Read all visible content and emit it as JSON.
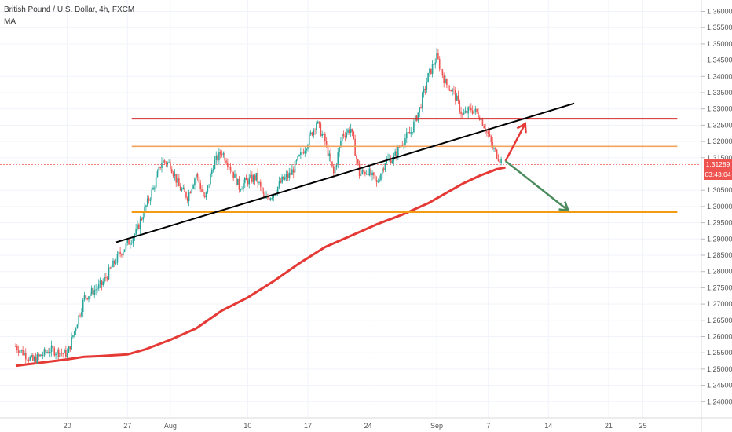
{
  "header": {
    "symbol": "British Pound / U.S. Dollar, 4h, FXCM",
    "indicator": "MA"
  },
  "price_tags": {
    "last": "1.31289",
    "countdown": "03:43:04"
  },
  "colors": {
    "up": "#26a69a",
    "down": "#ef5350",
    "ma": "#e53935",
    "resistance": "#d32f2f",
    "mid_level": "#f5a25d",
    "support": "#f39c12",
    "trendline": "#000000",
    "arrow_up": "#e53935",
    "arrow_down": "#4a8a5c",
    "last_tag": "#ef5350",
    "countdown_tag": "#ef5350"
  },
  "chart_data": {
    "type": "candlestick",
    "title": "British Pound / U.S. Dollar, 4h, FXCM",
    "ylim": [
      1.235,
      1.3635
    ],
    "y_ticks": [
      1.24,
      1.245,
      1.25,
      1.255,
      1.26,
      1.265,
      1.27,
      1.275,
      1.28,
      1.285,
      1.29,
      1.295,
      1.3,
      1.305,
      1.31,
      1.315,
      1.32,
      1.325,
      1.33,
      1.335,
      1.34,
      1.345,
      1.35,
      1.355,
      1.36
    ],
    "y_tick_labels": [
      "1.24000",
      "1.24500",
      "1.25000",
      "1.25500",
      "1.26000",
      "1.26500",
      "1.27000",
      "1.27500",
      "1.28000",
      "1.28500",
      "1.29000",
      "1.29500",
      "1.30000",
      "1.30500",
      "1.31000",
      "1.31500",
      "1.32000",
      "1.32500",
      "1.33000",
      "1.33500",
      "1.34000",
      "1.34500",
      "1.35000",
      "1.35500",
      "1.36000"
    ],
    "x_ticks": [
      {
        "label": "20",
        "day": 6
      },
      {
        "label": "27",
        "day": 13
      },
      {
        "label": "Aug",
        "day": 18
      },
      {
        "label": "10",
        "day": 27
      },
      {
        "label": "17",
        "day": 34
      },
      {
        "label": "24",
        "day": 41
      },
      {
        "label": "Sep",
        "day": 49
      },
      {
        "label": "7",
        "day": 55
      },
      {
        "label": "14",
        "day": 62
      },
      {
        "label": "21",
        "day": 69
      },
      {
        "label": "25",
        "day": 73
      }
    ],
    "key_points": [
      {
        "day": 0,
        "price": 1.257
      },
      {
        "day": 2,
        "price": 1.2525
      },
      {
        "day": 4,
        "price": 1.256
      },
      {
        "day": 6,
        "price": 1.2545
      },
      {
        "day": 8,
        "price": 1.272
      },
      {
        "day": 10,
        "price": 1.276
      },
      {
        "day": 12,
        "price": 1.285
      },
      {
        "day": 14,
        "price": 1.292
      },
      {
        "day": 15,
        "price": 1.299
      },
      {
        "day": 16,
        "price": 1.3055
      },
      {
        "day": 17,
        "price": 1.314
      },
      {
        "day": 18,
        "price": 1.313
      },
      {
        "day": 19,
        "price": 1.306
      },
      {
        "day": 20,
        "price": 1.303
      },
      {
        "day": 21,
        "price": 1.31
      },
      {
        "day": 22,
        "price": 1.302
      },
      {
        "day": 23,
        "price": 1.313
      },
      {
        "day": 24,
        "price": 1.317
      },
      {
        "day": 25,
        "price": 1.312
      },
      {
        "day": 26,
        "price": 1.306
      },
      {
        "day": 27,
        "price": 1.308
      },
      {
        "day": 28,
        "price": 1.309
      },
      {
        "day": 29,
        "price": 1.302
      },
      {
        "day": 30,
        "price": 1.304
      },
      {
        "day": 31,
        "price": 1.308
      },
      {
        "day": 32,
        "price": 1.31
      },
      {
        "day": 33,
        "price": 1.315
      },
      {
        "day": 34,
        "price": 1.32
      },
      {
        "day": 35,
        "price": 1.326
      },
      {
        "day": 36,
        "price": 1.32
      },
      {
        "day": 37,
        "price": 1.31
      },
      {
        "day": 38,
        "price": 1.322
      },
      {
        "day": 39,
        "price": 1.324
      },
      {
        "day": 40,
        "price": 1.31
      },
      {
        "day": 41,
        "price": 1.311
      },
      {
        "day": 42,
        "price": 1.307
      },
      {
        "day": 43,
        "price": 1.314
      },
      {
        "day": 44,
        "price": 1.315
      },
      {
        "day": 45,
        "price": 1.32
      },
      {
        "day": 46,
        "price": 1.323
      },
      {
        "day": 47,
        "price": 1.33
      },
      {
        "day": 48,
        "price": 1.34
      },
      {
        "day": 49,
        "price": 1.346
      },
      {
        "day": 49.5,
        "price": 1.342
      },
      {
        "day": 50,
        "price": 1.338
      },
      {
        "day": 51,
        "price": 1.335
      },
      {
        "day": 52,
        "price": 1.328
      },
      {
        "day": 53,
        "price": 1.33
      },
      {
        "day": 54,
        "price": 1.328
      },
      {
        "day": 55,
        "price": 1.322
      },
      {
        "day": 55.5,
        "price": 1.318
      },
      {
        "day": 56,
        "price": 1.316
      },
      {
        "day": 56.5,
        "price": 1.314
      }
    ],
    "moving_average": [
      {
        "day": 0,
        "price": 1.251
      },
      {
        "day": 3,
        "price": 1.252
      },
      {
        "day": 6,
        "price": 1.253
      },
      {
        "day": 8,
        "price": 1.2538
      },
      {
        "day": 10,
        "price": 1.254
      },
      {
        "day": 13,
        "price": 1.2545
      },
      {
        "day": 15,
        "price": 1.256
      },
      {
        "day": 18,
        "price": 1.259
      },
      {
        "day": 21,
        "price": 1.2625
      },
      {
        "day": 24,
        "price": 1.268
      },
      {
        "day": 27,
        "price": 1.272
      },
      {
        "day": 30,
        "price": 1.277
      },
      {
        "day": 33,
        "price": 1.2825
      },
      {
        "day": 36,
        "price": 1.2875
      },
      {
        "day": 39,
        "price": 1.291
      },
      {
        "day": 42,
        "price": 1.2945
      },
      {
        "day": 45,
        "price": 1.2975
      },
      {
        "day": 48,
        "price": 1.301
      },
      {
        "day": 50,
        "price": 1.304
      },
      {
        "day": 52,
        "price": 1.307
      },
      {
        "day": 54,
        "price": 1.3095
      },
      {
        "day": 56,
        "price": 1.3115
      },
      {
        "day": 57,
        "price": 1.312
      }
    ],
    "horizontal_levels": [
      {
        "name": "resistance",
        "price": 1.327,
        "from_day": 13.5,
        "to_day": 77
      },
      {
        "name": "mid_level",
        "price": 1.3185,
        "from_day": 13.5,
        "to_day": 77
      },
      {
        "name": "support",
        "price": 1.2983,
        "from_day": 13.5,
        "to_day": 77
      }
    ],
    "trendline": {
      "from": {
        "day": 11.7,
        "price": 1.289
      },
      "to": {
        "day": 65,
        "price": 1.3317
      }
    },
    "arrows": [
      {
        "name": "arrow-up",
        "from": {
          "day": 57,
          "price": 1.314
        },
        "to": {
          "day": 59.3,
          "price": 1.3255
        }
      },
      {
        "name": "arrow-down",
        "from": {
          "day": 57,
          "price": 1.314
        },
        "to": {
          "day": 64.3,
          "price": 1.2988
        }
      }
    ],
    "last_price": 1.31289
  }
}
